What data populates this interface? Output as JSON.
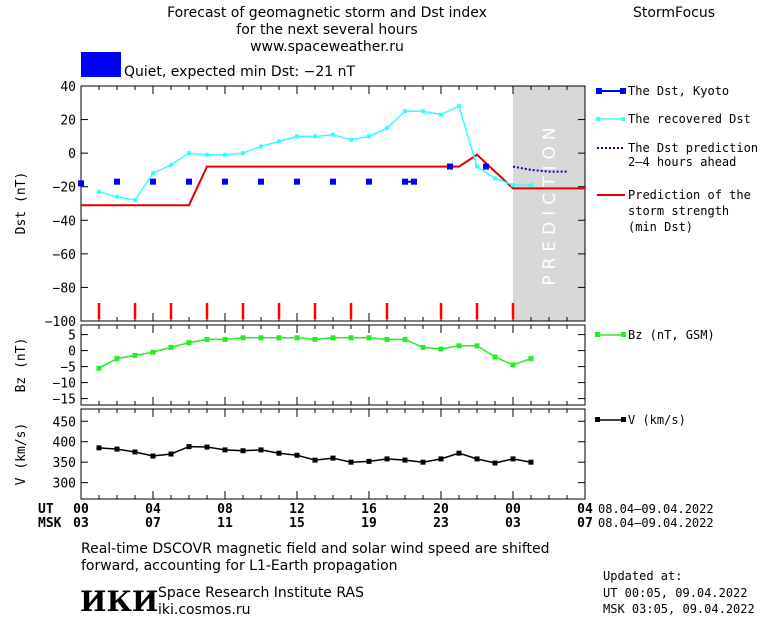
{
  "header": {
    "title_line1": "Forecast of geomagnetic storm and Dst index",
    "title_line2": "for the next several hours",
    "url": "www.spaceweather.ru",
    "brand": "StormFocus",
    "status_text": "Quiet, expected min Dst: −21 nT",
    "status_color": "#0000ff"
  },
  "prediction_label": "PREDICTION",
  "x_axis": {
    "ut_label": "UT",
    "msk_label": "MSK",
    "ut_ticks": [
      "00",
      "04",
      "08",
      "12",
      "16",
      "20",
      "00",
      "04"
    ],
    "msk_ticks": [
      "03",
      "07",
      "11",
      "15",
      "19",
      "23",
      "03",
      "07"
    ],
    "ut_date_range": "08.04–09.04.2022",
    "msk_date_range": "08.04–09.04.2022"
  },
  "legend": {
    "dst_kyoto": "The Dst, Kyoto",
    "recovered": "The recovered Dst",
    "prediction_l1": "The Dst prediction",
    "prediction_l2": "2–4 hours ahead",
    "strength_l1": "Prediction of the",
    "strength_l2": "storm strength",
    "strength_l3": "(min Dst)",
    "bz": "Bz (nT, GSM)",
    "v": "V (km/s)"
  },
  "footer": {
    "note_l1": "Real-time DSCOVR magnetic field and solar wind speed are shifted",
    "note_l2": "forward, accounting for L1-Earth propagation",
    "logo": "ИКИ",
    "institute": "Space Research Institute RAS",
    "site": "iki.cosmos.ru",
    "updated_label": "Updated at:",
    "updated_ut": "UT   00:05, 09.04.2022",
    "updated_msk": "MSK 03:05, 09.04.2022"
  },
  "colors": {
    "dst_kyoto": "#0000ff",
    "recovered": "#33ffff",
    "prediction": "#0000cc",
    "strength": "#dd0000",
    "bz": "#22ee22",
    "v": "#000000",
    "prediction_zone": "#d8d8d8",
    "storm_ticks": "#ff0000"
  },
  "chart_data": [
    {
      "type": "line",
      "name": "dst",
      "ylabel": "Dst (nT)",
      "ylim": [
        -100,
        40
      ],
      "yticks": [
        40,
        20,
        0,
        -20,
        -40,
        -60,
        -80,
        -100
      ],
      "xlim": [
        0,
        28
      ],
      "prediction_zone": [
        24,
        28
      ],
      "series": [
        {
          "name": "The Dst, Kyoto",
          "x": [
            0,
            2,
            4,
            6,
            8,
            10,
            12,
            14,
            16,
            18,
            18.5,
            20.5,
            22.5
          ],
          "y": [
            -18,
            -17,
            -17,
            -17,
            -17,
            -17,
            -17,
            -17,
            -17,
            -17,
            -17,
            -8,
            -8
          ]
        },
        {
          "name": "The recovered Dst",
          "x": [
            1,
            2,
            3,
            4,
            5,
            6,
            7,
            8,
            9,
            10,
            11,
            12,
            13,
            14,
            15,
            16,
            17,
            18,
            19,
            20,
            21,
            22,
            23,
            24,
            25
          ],
          "y": [
            -23,
            -26,
            -28,
            -12,
            -7,
            0,
            -1,
            -1,
            0,
            4,
            7,
            10,
            10,
            11,
            8,
            10,
            15,
            25,
            25,
            23,
            28,
            -8,
            -15,
            -19,
            -19
          ]
        },
        {
          "name": "The Dst prediction 2–4 hours ahead",
          "x": [
            24,
            25,
            26,
            27
          ],
          "y": [
            -8,
            -10,
            -11,
            -11
          ]
        },
        {
          "name": "Prediction of the storm strength (min Dst)",
          "x": [
            0,
            6,
            7,
            20,
            21,
            22,
            24,
            28
          ],
          "y": [
            -31,
            -31,
            -8,
            -8,
            -8,
            -1,
            -21,
            -21
          ]
        }
      ],
      "storm_marks_x": [
        1,
        3,
        5,
        7,
        9,
        11,
        13,
        15,
        17,
        20,
        22,
        24
      ]
    },
    {
      "type": "line",
      "name": "bz",
      "ylabel": "Bz (nT)",
      "ylim": [
        -17,
        8
      ],
      "yticks": [
        5,
        0,
        -5,
        -10,
        -15
      ],
      "series": [
        {
          "name": "Bz (nT, GSM)",
          "x": [
            1,
            2,
            3,
            4,
            5,
            6,
            7,
            8,
            9,
            10,
            11,
            12,
            13,
            14,
            15,
            16,
            17,
            18,
            19,
            20,
            21,
            22,
            23,
            24,
            25
          ],
          "y": [
            -5.5,
            -2.5,
            -1.5,
            -0.5,
            1,
            2.5,
            3.5,
            3.5,
            4,
            4,
            4,
            4,
            3.5,
            4,
            4,
            4,
            3.5,
            3.5,
            1,
            0.5,
            1.5,
            1.5,
            -2,
            -4.5,
            -2.5
          ]
        }
      ]
    },
    {
      "type": "line",
      "name": "v",
      "ylabel": "V (km/s)",
      "ylim": [
        260,
        480
      ],
      "yticks": [
        450,
        400,
        350,
        300
      ],
      "series": [
        {
          "name": "V (km/s)",
          "x": [
            1,
            2,
            3,
            4,
            5,
            6,
            7,
            8,
            9,
            10,
            11,
            12,
            13,
            14,
            15,
            16,
            17,
            18,
            19,
            20,
            21,
            22,
            23,
            24,
            25
          ],
          "y": [
            385,
            382,
            375,
            365,
            370,
            388,
            387,
            380,
            378,
            380,
            372,
            367,
            355,
            360,
            350,
            352,
            358,
            355,
            350,
            358,
            372,
            358,
            348,
            358,
            350
          ]
        }
      ]
    }
  ]
}
